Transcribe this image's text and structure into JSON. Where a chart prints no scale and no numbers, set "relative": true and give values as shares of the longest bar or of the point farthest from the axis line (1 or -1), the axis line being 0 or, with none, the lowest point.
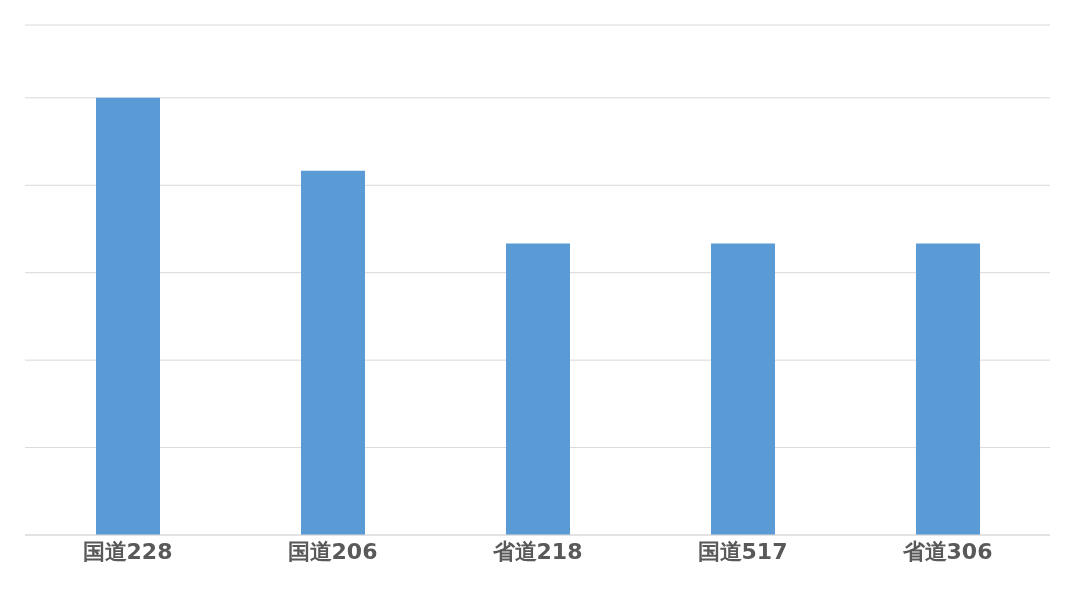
{
  "chart_data": {
    "type": "bar",
    "relative": true,
    "categories": [
      "国道228",
      "国道206",
      "省道218",
      "国道517",
      "省道306"
    ],
    "values": [
      1,
      0.8333,
      0.6667,
      0.6667,
      0.6667
    ],
    "color": "#5b9bd5",
    "grid": "y"
  }
}
